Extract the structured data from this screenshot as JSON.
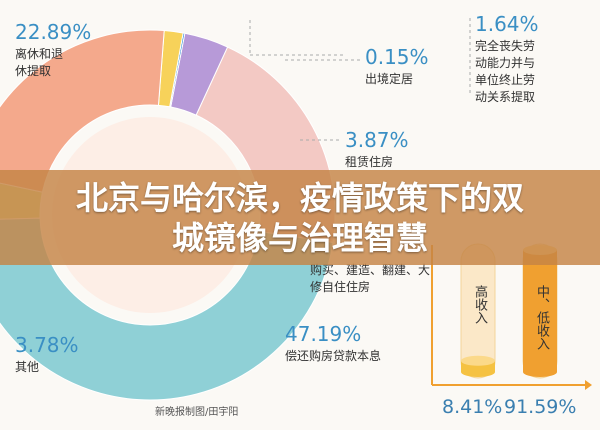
{
  "title": "北京与哈尔滨，疫情政策下的双城镜像与治理智慧",
  "credit": "新晚报制图/田宇阳",
  "chart_data": [
    {
      "type": "pie",
      "categories": [
        "离休和退休提取",
        "完全丧失劳动能力并与单位终止劳动关系提取",
        "出境定居",
        "租赁住房",
        "购买、建造、翻建、大修自住住房",
        "偿还购房贷款本息",
        "其他"
      ],
      "values": [
        22.89,
        1.64,
        0.15,
        3.87,
        20.48,
        47.19,
        3.78
      ],
      "value_labels": [
        "22.89%",
        "1.64%",
        "0.15%",
        "3.87%",
        null,
        "47.19%",
        "3.78%"
      ],
      "colors": [
        "#f4a98c",
        "#f7d25a",
        "#2f8fd8",
        "#b79ad8",
        "#f3c9c4",
        "#8fd0d6",
        "#cfe497"
      ]
    },
    {
      "type": "bar",
      "categories": [
        "高收入",
        "中、低收入"
      ],
      "values": [
        8.41,
        91.59
      ],
      "value_labels": [
        "8.41%",
        "91.59%"
      ],
      "colors": [
        "#f5c242",
        "#f0a030"
      ]
    }
  ]
}
